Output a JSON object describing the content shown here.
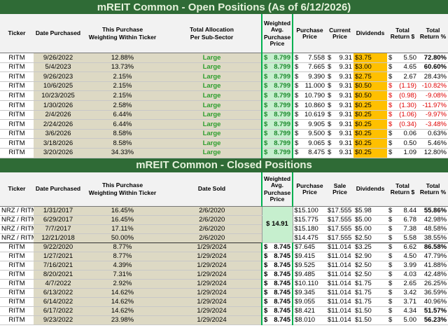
{
  "open": {
    "title": "mREIT Common - Open Positions (As of 6/12/2026)",
    "headers": [
      [
        "Ticker"
      ],
      [
        "Date Purchased"
      ],
      [
        "This Purchase",
        "Weighting Within Ticker"
      ],
      [
        "Total Allocation",
        "Per Sub-Sector"
      ],
      [
        "Weighted Avg.",
        "Purchase Price"
      ],
      [
        "Purchase Price"
      ],
      [
        "Current Price"
      ],
      [
        "Dividends"
      ],
      [
        "Total Return $"
      ],
      [
        "Total Return %"
      ]
    ],
    "bold_rows": [
      0,
      1
    ],
    "rows": [
      [
        "RITM",
        "9/26/2022",
        "12.88%",
        "Large",
        "$ 8.799",
        "$ 7.558",
        "$ 9.31",
        "$3.75",
        "$ 5.50",
        "72.80%"
      ],
      [
        "RITM",
        "5/4/2023",
        "13.73%",
        "Large",
        "$ 8.799",
        "$ 7.665",
        "$ 9.31",
        "$3.00",
        "$ 4.65",
        "60.60%"
      ],
      [
        "RITM",
        "9/26/2023",
        "2.15%",
        "Large",
        "$ 8.799",
        "$ 9.390",
        "$ 9.31",
        "$2.75",
        "$ 2.67",
        "28.43%"
      ],
      [
        "RITM",
        "10/6/2025",
        "2.15%",
        "Large",
        "$ 8.799",
        "$ 11.000",
        "$ 9.31",
        "$0.50",
        "$ (1.19)",
        "-10.82%"
      ],
      [
        "RITM",
        "10/23/2025",
        "2.15%",
        "Large",
        "$ 8.799",
        "$ 10.790",
        "$ 9.31",
        "$0.50",
        "$ (0.98)",
        "-9.08%"
      ],
      [
        "RITM",
        "1/30/2026",
        "2.58%",
        "Large",
        "$ 8.799",
        "$ 10.860",
        "$ 9.31",
        "$0.25",
        "$ (1.30)",
        "-11.97%"
      ],
      [
        "RITM",
        "2/4/2026",
        "6.44%",
        "Large",
        "$ 8.799",
        "$ 10.619",
        "$ 9.31",
        "$0.25",
        "$ (1.06)",
        "-9.97%"
      ],
      [
        "RITM",
        "2/24/2026",
        "6.44%",
        "Large",
        "$ 8.799",
        "$ 9.905",
        "$ 9.31",
        "$0.25",
        "$ (0.34)",
        "-3.48%"
      ],
      [
        "RITM",
        "3/6/2026",
        "8.58%",
        "Large",
        "$ 8.799",
        "$ 9.500",
        "$ 9.31",
        "$0.25",
        "$ 0.06",
        "0.63%"
      ],
      [
        "RITM",
        "3/18/2026",
        "8.58%",
        "Large",
        "$ 8.799",
        "$ 9.065",
        "$ 9.31",
        "$0.25",
        "$ 0.50",
        "5.46%"
      ],
      [
        "RITM",
        "3/20/2026",
        "34.33%",
        "Large",
        "$ 8.799",
        "$ 8.475",
        "$ 9.31",
        "$0.25",
        "$ 1.09",
        "12.80%"
      ]
    ]
  },
  "closed": {
    "title": "mREIT Common - Closed Positions",
    "headers": [
      [
        "Ticker"
      ],
      [
        "Date Purchased"
      ],
      [
        "This Purchase",
        "Weighting Within Ticker"
      ],
      [
        "Date Sold"
      ],
      [
        "Weighted Avg.",
        "Purchase Price"
      ],
      [
        "Purchase Price"
      ],
      [
        "Sale Price"
      ],
      [
        "Dividends"
      ],
      [
        "Total Return $"
      ],
      [
        "Total Return %"
      ]
    ],
    "bold_rows": [
      0,
      4,
      11,
      12
    ],
    "rows": [
      [
        "NRZ / RITM",
        "1/31/2017",
        "16.45%",
        "2/6/2020",
        "$ 14.91",
        "$15.100",
        "$17.555",
        "$5.98",
        "$ 8.44",
        "55.86%"
      ],
      [
        "NRZ / RITM",
        "6/29/2017",
        "16.45%",
        "2/6/2020",
        null,
        "$15.775",
        "$17.555",
        "$5.00",
        "$ 6.78",
        "42.98%"
      ],
      [
        "NRZ / RITM",
        "7/7/2017",
        "17.11%",
        "2/6/2020",
        null,
        "$15.180",
        "$17.555",
        "$5.00",
        "$ 7.38",
        "48.58%"
      ],
      [
        "NRZ / RITM",
        "12/21/2018",
        "50.00%",
        "2/6/2020",
        null,
        "$14.475",
        "$17.555",
        "$2.50",
        "$ 5.58",
        "38.55%"
      ],
      [
        "RITM",
        "9/22/2020",
        "8.77%",
        "1/29/2024",
        "$ 8.745",
        "$7.645",
        "$11.014",
        "$3.25",
        "$ 6.62",
        "86.58%"
      ],
      [
        "RITM",
        "1/27/2021",
        "8.77%",
        "1/29/2024",
        "$ 8.745",
        "$9.415",
        "$11.014",
        "$2.90",
        "$ 4.50",
        "47.79%"
      ],
      [
        "RITM",
        "7/16/2021",
        "4.39%",
        "1/29/2024",
        "$ 8.745",
        "$9.525",
        "$11.014",
        "$2.50",
        "$ 3.99",
        "41.88%"
      ],
      [
        "RITM",
        "8/20/2021",
        "7.31%",
        "1/29/2024",
        "$ 8.745",
        "$9.485",
        "$11.014",
        "$2.50",
        "$ 4.03",
        "42.48%"
      ],
      [
        "RITM",
        "4/7/2022",
        "2.92%",
        "1/29/2024",
        "$ 8.745",
        "$10.110",
        "$11.014",
        "$1.75",
        "$ 2.65",
        "26.25%"
      ],
      [
        "RITM",
        "6/13/2022",
        "14.62%",
        "1/29/2024",
        "$ 8.745",
        "$9.345",
        "$11.014",
        "$1.75",
        "$ 3.42",
        "36.59%"
      ],
      [
        "RITM",
        "6/14/2022",
        "14.62%",
        "1/29/2024",
        "$ 8.745",
        "$9.055",
        "$11.014",
        "$1.75",
        "$ 3.71",
        "40.96%"
      ],
      [
        "RITM",
        "6/17/2022",
        "14.62%",
        "1/29/2024",
        "$ 8.745",
        "$8.421",
        "$11.014",
        "$1.50",
        "$ 4.34",
        "51.57%"
      ],
      [
        "RITM",
        "9/23/2022",
        "23.98%",
        "1/29/2024",
        "$ 8.745",
        "$8.010",
        "$11.014",
        "$1.50",
        "$ 5.00",
        "56.23%"
      ]
    ]
  }
}
